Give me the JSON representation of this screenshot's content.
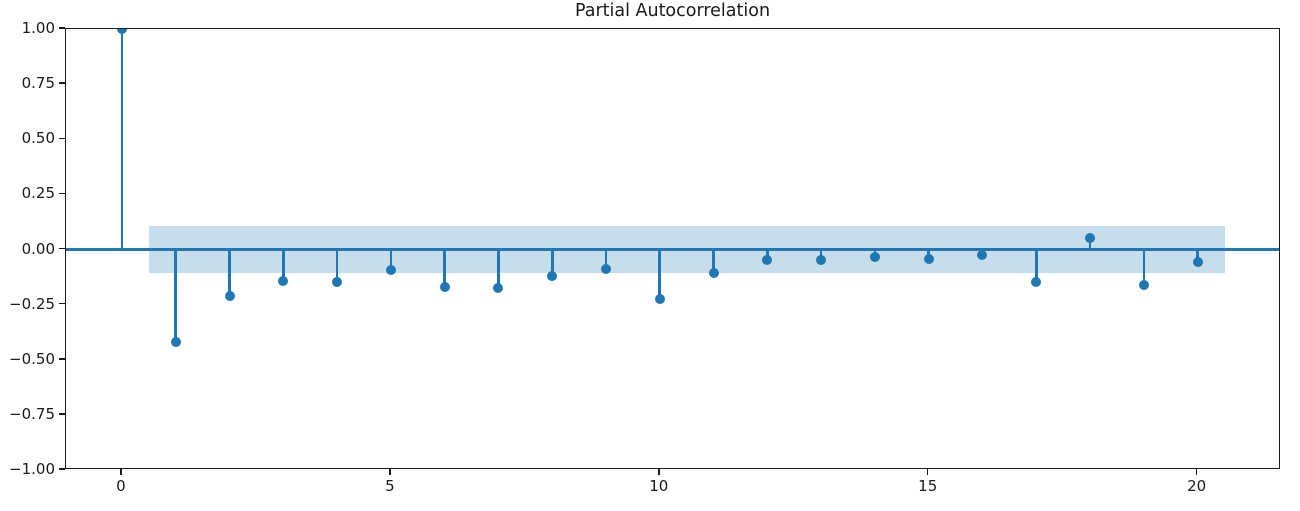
{
  "chart_data": {
    "type": "stem",
    "title": "Partial Autocorrelation",
    "xlabel": "",
    "ylabel": "",
    "x": [
      0,
      1,
      2,
      3,
      4,
      5,
      6,
      7,
      8,
      9,
      10,
      11,
      12,
      13,
      14,
      15,
      16,
      17,
      18,
      19,
      20
    ],
    "values": [
      1.0,
      -0.42,
      -0.213,
      -0.145,
      -0.148,
      -0.091,
      -0.17,
      -0.175,
      -0.12,
      -0.087,
      -0.226,
      -0.105,
      -0.046,
      -0.048,
      -0.034,
      -0.041,
      -0.024,
      -0.148,
      0.053,
      -0.161,
      -0.057
    ],
    "confidence_band": {
      "upper": 0.105,
      "lower": -0.105,
      "x_start": 0.5,
      "x_end": 20.5
    },
    "xlim": [
      -1.04,
      21.55
    ],
    "ylim": [
      -1.0,
      1.0
    ],
    "x_ticks": {
      "values": [
        0,
        5,
        10,
        15,
        20
      ],
      "labels": [
        "0",
        "5",
        "10",
        "15",
        "20"
      ]
    },
    "y_ticks": {
      "values": [
        1.0,
        0.75,
        0.5,
        0.25,
        0.0,
        -0.25,
        -0.5,
        -0.75,
        -1.0
      ],
      "labels": [
        "1.00",
        "0.75",
        "0.50",
        "0.25",
        "0.00",
        "−0.25",
        "−0.50",
        "−0.75",
        "−1.00"
      ]
    },
    "grid": false,
    "legend_position": "none",
    "colors": {
      "stem": "#1f77b4",
      "marker": "#1f77b4",
      "zero_line": "#1f77b4",
      "confidence_band": "#c7ddec",
      "spine": "#1a1a1a",
      "text": "#1a1a1a"
    }
  }
}
